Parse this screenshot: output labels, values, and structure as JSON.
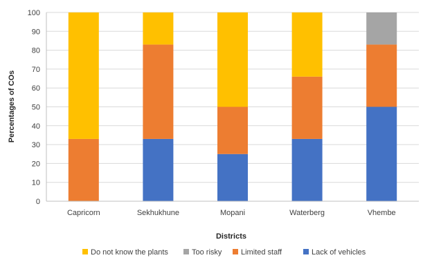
{
  "chart_data": {
    "type": "bar",
    "stacked": true,
    "categories": [
      "Capricorn",
      "Sekhukhune",
      "Mopani",
      "Waterberg",
      "Vhembe"
    ],
    "series": [
      {
        "name": "Lack of vehicles",
        "color": "#4472c4",
        "values": [
          0,
          33,
          25,
          33,
          50
        ]
      },
      {
        "name": "Limited staff",
        "color": "#ed7d31",
        "values": [
          33,
          50,
          25,
          33,
          33
        ]
      },
      {
        "name": "Too risky",
        "color": "#a5a5a5",
        "values": [
          0,
          0,
          0,
          0,
          17
        ]
      },
      {
        "name": "Do not know the plants",
        "color": "#ffc000",
        "values": [
          67,
          17,
          50,
          34,
          0
        ]
      }
    ],
    "legend_order": [
      "Do not know the plants",
      "Too risky",
      "Limited staff",
      "Lack of vehicles"
    ],
    "title": "",
    "xlabel": "Districts",
    "ylabel": "Percentages of COs",
    "ylim": [
      0,
      100
    ],
    "yticks": [
      0,
      10,
      20,
      30,
      40,
      50,
      60,
      70,
      80,
      90,
      100
    ],
    "grid": true,
    "legend_position": "bottom"
  }
}
